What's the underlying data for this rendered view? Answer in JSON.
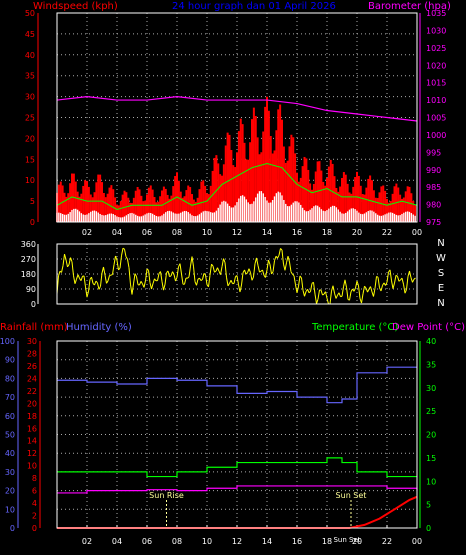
{
  "colors": {
    "background": "#000000",
    "frame": "#ffffff",
    "grid": "#aaaaaa",
    "windspeed_axis": "#ff0000",
    "barometer_axis": "#ff00ff",
    "title": "#0000ff",
    "wind_max": "#ff0000",
    "wind_avg": "#00ff00",
    "wind_fill": "#ffffff",
    "wind_low": "#66ff99",
    "barometer": "#ff00ff",
    "direction": "#ffff00",
    "rainfall": "#ff0000",
    "humidity": "#6666ff",
    "temperature": "#00ff00",
    "dew_point": "#ff00ff",
    "sun_marker": "#ffff99"
  },
  "header": {
    "windspeed_label": "Windspeed (kph)",
    "title": "24 hour graph dan 01 April 2026",
    "barometer_label": "Barometer (hpa)"
  },
  "mid_header": {
    "rainfall_label": "Rainfall (mm)",
    "humidity_label": "Humidity (%)",
    "temperature_label": "Temperature (°C)",
    "dewpoint_label": "Dew Point (°C)"
  },
  "direction_compass": [
    "N",
    "W",
    "S",
    "E",
    "N"
  ],
  "sun_labels": {
    "sunrise": "Sun Rise",
    "sunset": "Sun Set",
    "sunset_time": "Sun Set"
  },
  "chart_data": [
    {
      "id": "wind",
      "type": "area",
      "x_ticks": [
        "02",
        "04",
        "06",
        "08",
        "10",
        "12",
        "14",
        "16",
        "18",
        "20",
        "22",
        "00"
      ],
      "left_axis": {
        "label": "Windspeed (kph)",
        "ticks": [
          0,
          5,
          10,
          15,
          20,
          25,
          30,
          35,
          40,
          45,
          50
        ],
        "range": [
          0,
          50
        ]
      },
      "right_axis": {
        "label": "Barometer (hpa)",
        "ticks": [
          975,
          980,
          985,
          990,
          995,
          1000,
          1005,
          1010,
          1015,
          1020,
          1025,
          1030,
          1035
        ],
        "range": [
          975,
          1035
        ]
      },
      "grid": true,
      "series": [
        {
          "name": "Windspeed (kph)",
          "hours": [
            0,
            1,
            2,
            3,
            4,
            5,
            6,
            7,
            8,
            9,
            10,
            11,
            12,
            13,
            14,
            15,
            16,
            17,
            18,
            19,
            20,
            21,
            22,
            23,
            24
          ],
          "max": [
            9,
            12,
            10,
            12,
            7,
            8,
            9,
            8,
            12,
            8,
            11,
            20,
            24,
            27,
            30,
            28,
            18,
            14,
            16,
            12,
            12,
            11,
            8,
            10,
            7
          ],
          "avg": [
            4,
            6,
            5,
            5,
            3,
            4,
            4,
            4,
            6,
            4,
            5,
            9,
            11,
            13,
            14,
            13,
            9,
            7,
            8,
            6,
            6,
            5,
            4,
            5,
            4
          ]
        },
        {
          "name": "Barometer (hpa)",
          "hours": [
            0,
            2,
            4,
            6,
            8,
            10,
            12,
            14,
            16,
            18,
            20,
            22,
            24
          ],
          "values": [
            1010,
            1011,
            1010,
            1010,
            1011,
            1010,
            1010,
            1010,
            1009,
            1007,
            1006,
            1005,
            1004
          ]
        }
      ]
    },
    {
      "id": "direction",
      "type": "scatter",
      "y_ticks": [
        0,
        90,
        180,
        270,
        360
      ],
      "range": [
        0,
        360
      ],
      "x_ticks": [
        "02",
        "04",
        "06",
        "08",
        "10",
        "12",
        "14",
        "16",
        "18",
        "20",
        "22",
        "00"
      ],
      "series": [
        {
          "name": "Wind direction",
          "hours": [
            0,
            0.5,
            1,
            1.5,
            2,
            2.5,
            3,
            3.5,
            4,
            4.5,
            5,
            5.5,
            6,
            6.5,
            7,
            7.5,
            8,
            8.5,
            9,
            9.5,
            10,
            10.5,
            11,
            11.5,
            12,
            12.5,
            13,
            13.5,
            14,
            14.5,
            15,
            15.5,
            16,
            16.5,
            17,
            17.5,
            18,
            18.5,
            19,
            19.5,
            20,
            20.5,
            21,
            21.5,
            22,
            22.5,
            23,
            23.5,
            24
          ],
          "values": [
            60,
            300,
            200,
            150,
            110,
            120,
            150,
            170,
            240,
            320,
            120,
            130,
            150,
            140,
            150,
            160,
            200,
            140,
            220,
            130,
            160,
            200,
            230,
            140,
            120,
            170,
            200,
            220,
            180,
            260,
            300,
            220,
            120,
            90,
            80,
            60,
            40,
            50,
            80,
            70,
            90,
            60,
            100,
            110,
            140,
            160,
            120,
            140,
            160
          ]
        }
      ]
    },
    {
      "id": "temp",
      "type": "line",
      "x_ticks": [
        "02",
        "04",
        "06",
        "08",
        "10",
        "12",
        "14",
        "16",
        "18",
        "20",
        "22",
        "00"
      ],
      "left_axis_humidity": {
        "label": "Humidity (%)",
        "ticks": [
          0,
          10,
          20,
          30,
          40,
          50,
          60,
          70,
          80,
          90,
          100
        ],
        "range": [
          0,
          100
        ]
      },
      "left_axis_rain": {
        "label": "Rainfall (mm)",
        "ticks": [
          0,
          2,
          4,
          6,
          8,
          10,
          12,
          14,
          16,
          18,
          20,
          22,
          24,
          26,
          28,
          30
        ],
        "range": [
          0,
          30
        ]
      },
      "right_axis": {
        "label": "Temperature (°C)",
        "ticks": [
          0,
          5,
          10,
          15,
          20,
          25,
          30,
          35,
          40
        ],
        "range": [
          0,
          40
        ]
      },
      "grid": true,
      "series": [
        {
          "name": "Humidity (%)",
          "hours": [
            0,
            2,
            4,
            6,
            8,
            10,
            12,
            14,
            16,
            18,
            19,
            20,
            22,
            24
          ],
          "values": [
            79,
            78,
            77,
            80,
            79,
            76,
            72,
            73,
            70,
            67,
            69,
            83,
            86,
            86
          ]
        },
        {
          "name": "Temperature (°C)",
          "hours": [
            0,
            2,
            4,
            6,
            8,
            10,
            12,
            14,
            16,
            18,
            19,
            20,
            22,
            24
          ],
          "values": [
            12,
            12,
            12,
            11,
            12,
            13,
            14,
            14,
            14,
            15,
            14,
            12,
            11,
            11
          ]
        },
        {
          "name": "Dew Point (°C)",
          "hours": [
            0,
            2,
            4,
            6,
            8,
            10,
            12,
            14,
            16,
            18,
            20,
            22,
            24
          ],
          "values": [
            7.5,
            8,
            8,
            8.2,
            8,
            8.5,
            9,
            9,
            9,
            9,
            9,
            8.5,
            8
          ]
        },
        {
          "name": "Rainfall (mm)",
          "hours": [
            0,
            19.5,
            20.5,
            21.5,
            22.5,
            23.5,
            24
          ],
          "values": [
            0,
            0,
            0.5,
            1.5,
            3,
            4.5,
            5
          ]
        }
      ],
      "events": [
        {
          "label": "Sun Rise",
          "hour": 7.3
        },
        {
          "label": "Sun Set",
          "hour": 19.6
        }
      ]
    }
  ]
}
